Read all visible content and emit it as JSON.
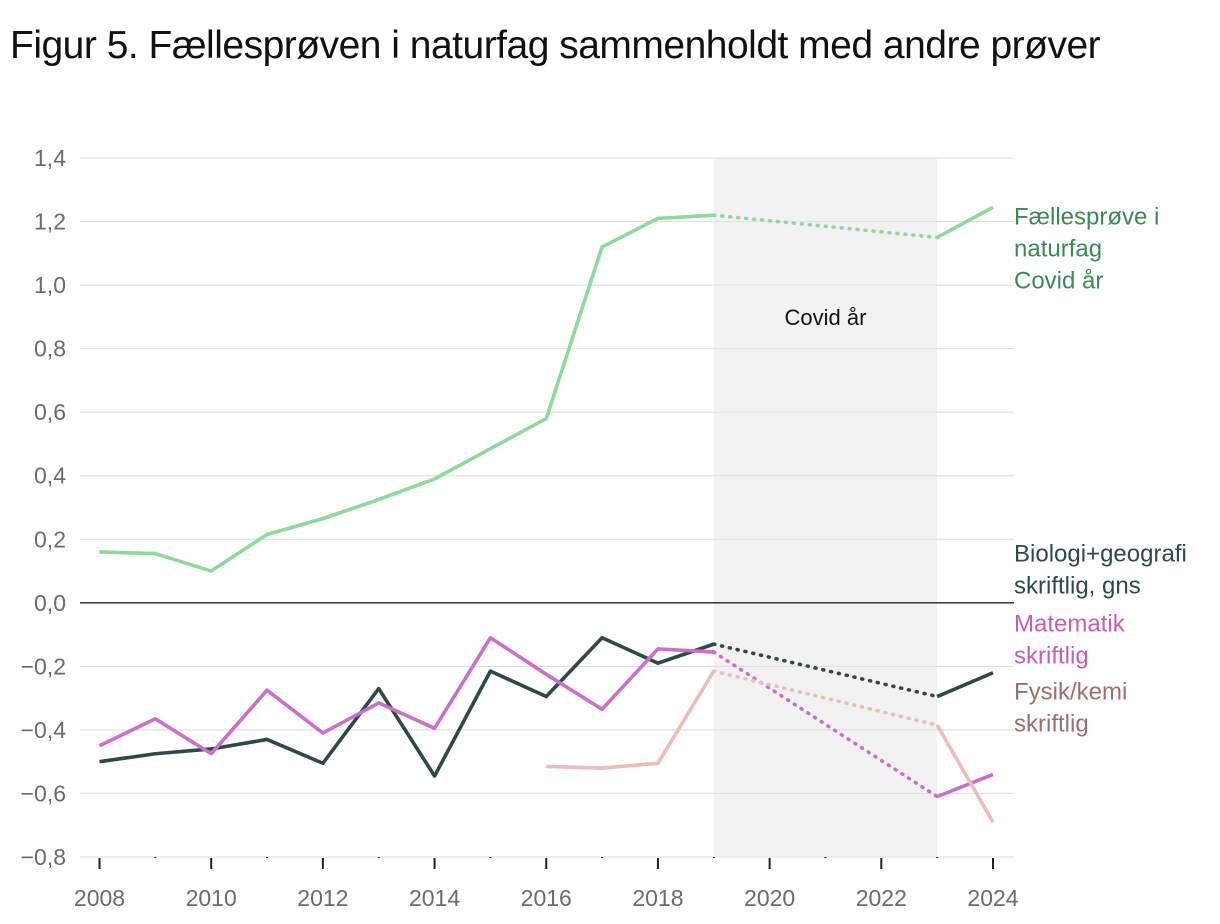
{
  "title": "Figur 5. Fællesprøven i naturfag sammenholdt med andre prøver",
  "chart_data": {
    "type": "line",
    "title": "Figur 5. Fællesprøven i naturfag sammenholdt med andre prøver",
    "xlabel": "",
    "ylabel": "",
    "xlim": [
      2008,
      2024
    ],
    "ylim": [
      -0.8,
      1.4
    ],
    "x_ticks": [
      2008,
      2010,
      2012,
      2014,
      2016,
      2018,
      2020,
      2022,
      2024
    ],
    "x_tick_labels": [
      "2008",
      "2010",
      "2012",
      "2014",
      "2016",
      "2018",
      "2020",
      "2022",
      "2024"
    ],
    "y_ticks": [
      1.4,
      1.2,
      1.0,
      0.8,
      0.6,
      0.4,
      0.2,
      0.0,
      -0.2,
      -0.4,
      -0.6,
      -0.8
    ],
    "y_tick_labels": [
      "1,4",
      "1,2",
      "1,0",
      "0,8",
      "0,6",
      "0,4",
      "0,2",
      "0,0",
      "−0,2",
      "−0,4",
      "−0,6",
      "−0,8"
    ],
    "shaded_region": {
      "from": 2019,
      "to": 2023,
      "label": "Covid år",
      "color": "#f2f2f2"
    },
    "series": [
      {
        "name": "Fællesprøve i naturfag",
        "label_lines": [
          "Fællesprøve i",
          "naturfag",
          "Covid år"
        ],
        "color": "#8fd89e",
        "label_color": "#3a8a55",
        "x": [
          2008,
          2009,
          2010,
          2011,
          2012,
          2013,
          2014,
          2015,
          2016,
          2017,
          2018,
          2019,
          2023,
          2024
        ],
        "y": [
          0.16,
          0.155,
          0.1,
          0.215,
          0.265,
          0.325,
          0.39,
          0.485,
          0.58,
          1.12,
          1.21,
          1.22,
          1.15,
          1.245
        ],
        "label_y": 1.19
      },
      {
        "name": "Biologi+geografi skriftlig, gns",
        "label_lines": [
          "Biologi+geografi",
          "skriftlig, gns"
        ],
        "color": "#2d4a47",
        "label_color": "#2d4a47",
        "x": [
          2008,
          2009,
          2010,
          2011,
          2012,
          2013,
          2014,
          2015,
          2016,
          2017,
          2018,
          2019,
          2023,
          2024
        ],
        "y": [
          -0.5,
          -0.475,
          -0.46,
          -0.43,
          -0.505,
          -0.27,
          -0.545,
          -0.215,
          -0.295,
          -0.11,
          -0.19,
          -0.13,
          -0.295,
          -0.22
        ],
        "label_y": 0.13
      },
      {
        "name": "Matematik skriftlig",
        "label_lines": [
          "Matematik",
          "skriftlig"
        ],
        "color": "#cc6fcc",
        "label_color": "#c05ec0",
        "x": [
          2008,
          2009,
          2010,
          2011,
          2012,
          2013,
          2014,
          2015,
          2016,
          2017,
          2018,
          2019,
          2023,
          2024
        ],
        "y": [
          -0.45,
          -0.365,
          -0.475,
          -0.275,
          -0.41,
          -0.315,
          -0.395,
          -0.11,
          -0.225,
          -0.335,
          -0.145,
          -0.155,
          -0.61,
          -0.54
        ],
        "label_y": -0.09
      },
      {
        "name": "Fysik/kemi skriftlig",
        "label_lines": [
          "Fysik/kemi",
          "skriftlig"
        ],
        "color": "#ecbcb6",
        "label_color": "#9e6e6e",
        "x": [
          2016,
          2017,
          2018,
          2019,
          2023,
          2024
        ],
        "y": [
          -0.515,
          -0.52,
          -0.505,
          -0.215,
          -0.385,
          -0.69
        ],
        "label_y": -0.305
      }
    ]
  }
}
